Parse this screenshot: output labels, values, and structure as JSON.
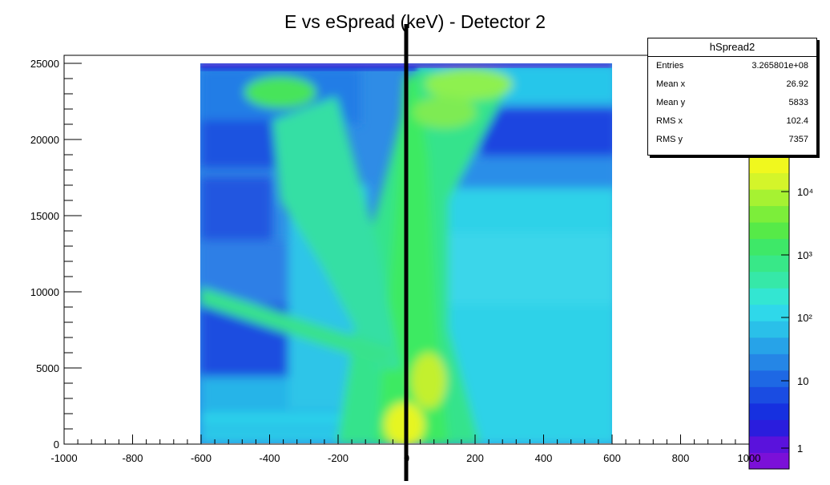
{
  "chart_data": {
    "type": "heatmap",
    "title": "E vs eSpread (keV) - Detector 2",
    "xlim": [
      -1000,
      1000
    ],
    "ylim": [
      0,
      25000
    ],
    "x_ticks": [
      "-1000",
      "-800",
      "-600",
      "-400",
      "-200",
      "0",
      "200",
      "400",
      "600",
      "800",
      "1000"
    ],
    "y_ticks": [
      "0",
      "5000",
      "10000",
      "15000",
      "20000",
      "25000"
    ],
    "z_scale": "log",
    "z_ticks": [
      "1",
      "10",
      "10²",
      "10³",
      "10⁴"
    ],
    "data_extent_x": [
      -600,
      600
    ],
    "data_extent_y": [
      0,
      24500
    ],
    "colors": {
      "low": "#6a1fd6",
      "mid_low": "#1a3fe0",
      "mid": "#23b7e8",
      "mid_high": "#2de866",
      "high": "#f7f51a"
    },
    "grid": false,
    "vertical_marker_x": 0
  },
  "stats_box": {
    "title": "hSpread2",
    "rows": [
      {
        "label": "Entries",
        "value": "3.265801e+08"
      },
      {
        "label": "Mean x",
        "value": "26.92"
      },
      {
        "label": "Mean y",
        "value": "5833"
      },
      {
        "label": "RMS x",
        "value": "102.4"
      },
      {
        "label": "RMS y",
        "value": "7357"
      }
    ]
  }
}
